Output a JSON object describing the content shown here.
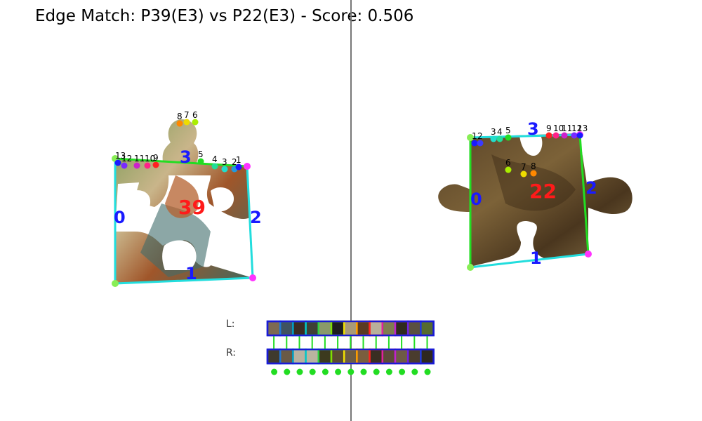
{
  "title": "Edge Match: P39(E3) vs P22(E3) - Score: 0.506",
  "left_piece": {
    "id_label": "39",
    "edge_labels": [
      "0",
      "1",
      "2",
      "3"
    ],
    "point_labels": [
      "13",
      "12",
      "11",
      "10",
      "9",
      "8",
      "7",
      "6",
      "5",
      "4",
      "3",
      "2",
      "1"
    ]
  },
  "right_piece": {
    "id_label": "22",
    "edge_labels": [
      "0",
      "1",
      "2",
      "3"
    ],
    "point_labels": [
      "1",
      "2",
      "3",
      "4",
      "5",
      "6",
      "7",
      "8",
      "9",
      "10",
      "11",
      "12",
      "13"
    ]
  },
  "strip": {
    "left_label": "L:",
    "right_label": "R:",
    "count": 13,
    "left_fill": [
      "#7d6a52",
      "#3f5361",
      "#3a2b22",
      "#3e4136",
      "#8a9a6a",
      "#1e1e1e",
      "#a89a78",
      "#5a3b22",
      "#b9b09a",
      "#7f7d50",
      "#2f2a1e",
      "#5a5040",
      "#556b2f"
    ],
    "left_border": [
      "#1f3bd6",
      "#1f77d6",
      "#00a0c0",
      "#00c8c8",
      "#30d040",
      "#80e000",
      "#f0e000",
      "#ff9a00",
      "#ff2020",
      "#e020a0",
      "#c020d0",
      "#7020e0",
      "#1f3bd6"
    ],
    "right_fill": [
      "#3f3a2e",
      "#6a5a46",
      "#b8b2a0",
      "#b9b4a0",
      "#3c3a1e",
      "#5a4a30",
      "#6c5c44",
      "#7a5e3e",
      "#3a2e22",
      "#5c4a38",
      "#6e5a46",
      "#4a3c2e",
      "#2e2820"
    ],
    "right_border": [
      "#1f3bd6",
      "#1f77d6",
      "#00a0c0",
      "#00c8c8",
      "#30d040",
      "#80e000",
      "#f0e000",
      "#ff9a00",
      "#ff2020",
      "#e020a0",
      "#c020d0",
      "#7020e0",
      "#1f3bd6"
    ],
    "match_color": "#22dd22"
  },
  "colors": {
    "divider": "#777777",
    "contour_green": "#22dd22",
    "contour_cyan": "#22dddd",
    "edge_label": "#1a1aff",
    "piece_label": "#ff1a1a",
    "corner": "#ff33ff"
  }
}
